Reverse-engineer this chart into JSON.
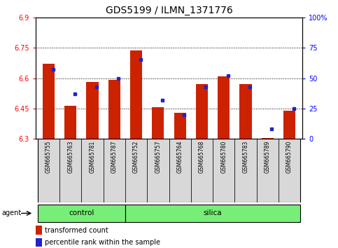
{
  "title": "GDS5199 / ILMN_1371776",
  "samples": [
    "GSM665755",
    "GSM665763",
    "GSM665781",
    "GSM665787",
    "GSM665752",
    "GSM665757",
    "GSM665764",
    "GSM665768",
    "GSM665780",
    "GSM665783",
    "GSM665789",
    "GSM665790"
  ],
  "groups": [
    "control",
    "control",
    "control",
    "control",
    "silica",
    "silica",
    "silica",
    "silica",
    "silica",
    "silica",
    "silica",
    "silica"
  ],
  "red_values": [
    6.67,
    6.465,
    6.58,
    6.59,
    6.735,
    6.455,
    6.43,
    6.57,
    6.61,
    6.57,
    6.305,
    6.44
  ],
  "blue_values_pct": [
    57,
    37,
    43,
    50,
    65,
    32,
    20,
    43,
    52,
    43,
    8,
    25
  ],
  "ylim_left": [
    6.3,
    6.9
  ],
  "ylim_right": [
    0,
    100
  ],
  "yticks_left": [
    6.3,
    6.45,
    6.6,
    6.75,
    6.9
  ],
  "yticks_right": [
    0,
    25,
    50,
    75,
    100
  ],
  "ytick_labels_left": [
    "6.3",
    "6.45",
    "6.6",
    "6.75",
    "6.9"
  ],
  "ytick_labels_right": [
    "0",
    "25",
    "50",
    "75",
    "100%"
  ],
  "bar_color": "#cc2200",
  "dot_color": "#2222cc",
  "bar_width": 0.55,
  "bar_bottom": 6.3,
  "control_color": "#77ee77",
  "silica_color": "#77ee77",
  "agent_label": "agent",
  "control_label": "control",
  "silica_label": "silica",
  "legend_red": "transformed count",
  "legend_blue": "percentile rank within the sample",
  "title_fontsize": 10,
  "tick_fontsize": 7,
  "label_fontsize": 7,
  "n_control": 4,
  "n_silica": 8
}
